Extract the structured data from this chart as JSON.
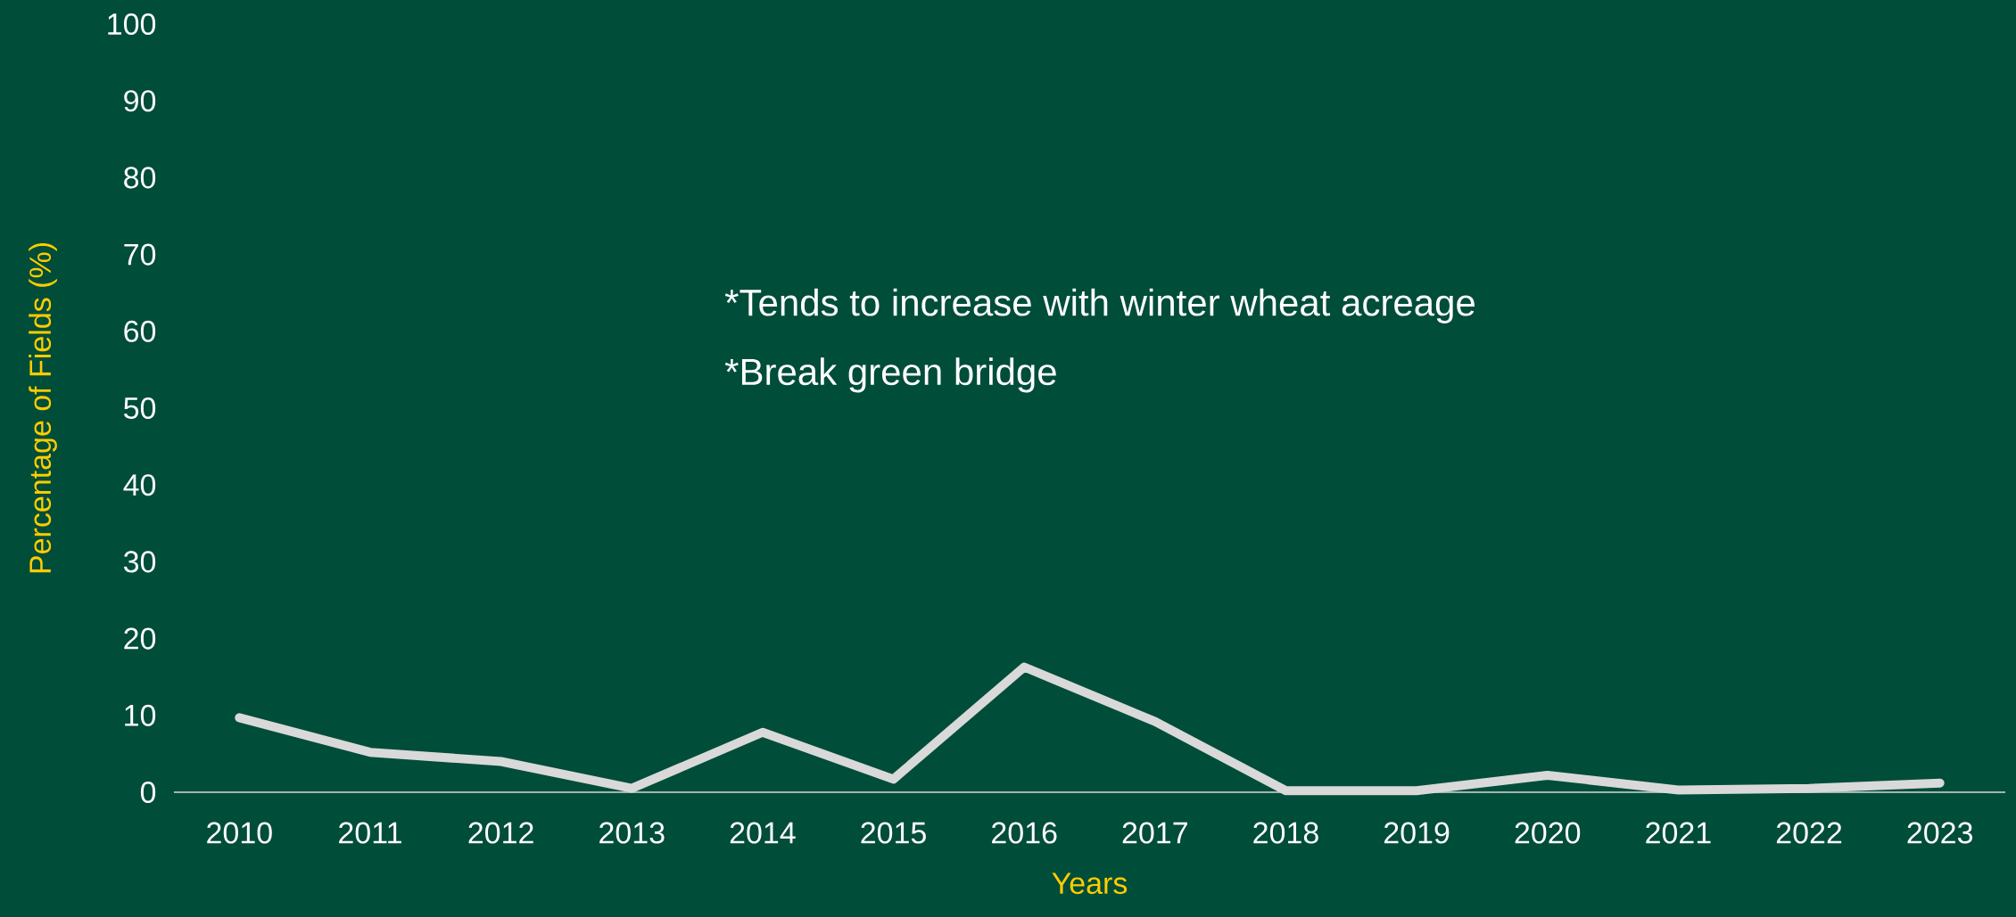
{
  "chart_data": {
    "type": "line",
    "xlabel": "Years",
    "ylabel": "Percentage of Fields (%)",
    "categories": [
      "2010",
      "2011",
      "2012",
      "2013",
      "2014",
      "2015",
      "2016",
      "2017",
      "2018",
      "2019",
      "2020",
      "2021",
      "2022",
      "2023"
    ],
    "values": [
      9.7,
      5.2,
      4.0,
      0.5,
      7.8,
      1.7,
      16.3,
      9.2,
      0.2,
      0.2,
      2.2,
      0.3,
      0.5,
      1.2
    ],
    "color": "#d9d9d9",
    "ylim": [
      0,
      100
    ],
    "yticks": [
      0,
      10,
      20,
      30,
      40,
      50,
      60,
      70,
      80,
      90,
      100
    ],
    "annotations": [
      "*Tends to increase with winter wheat acreage",
      "*Break green bridge"
    ]
  }
}
